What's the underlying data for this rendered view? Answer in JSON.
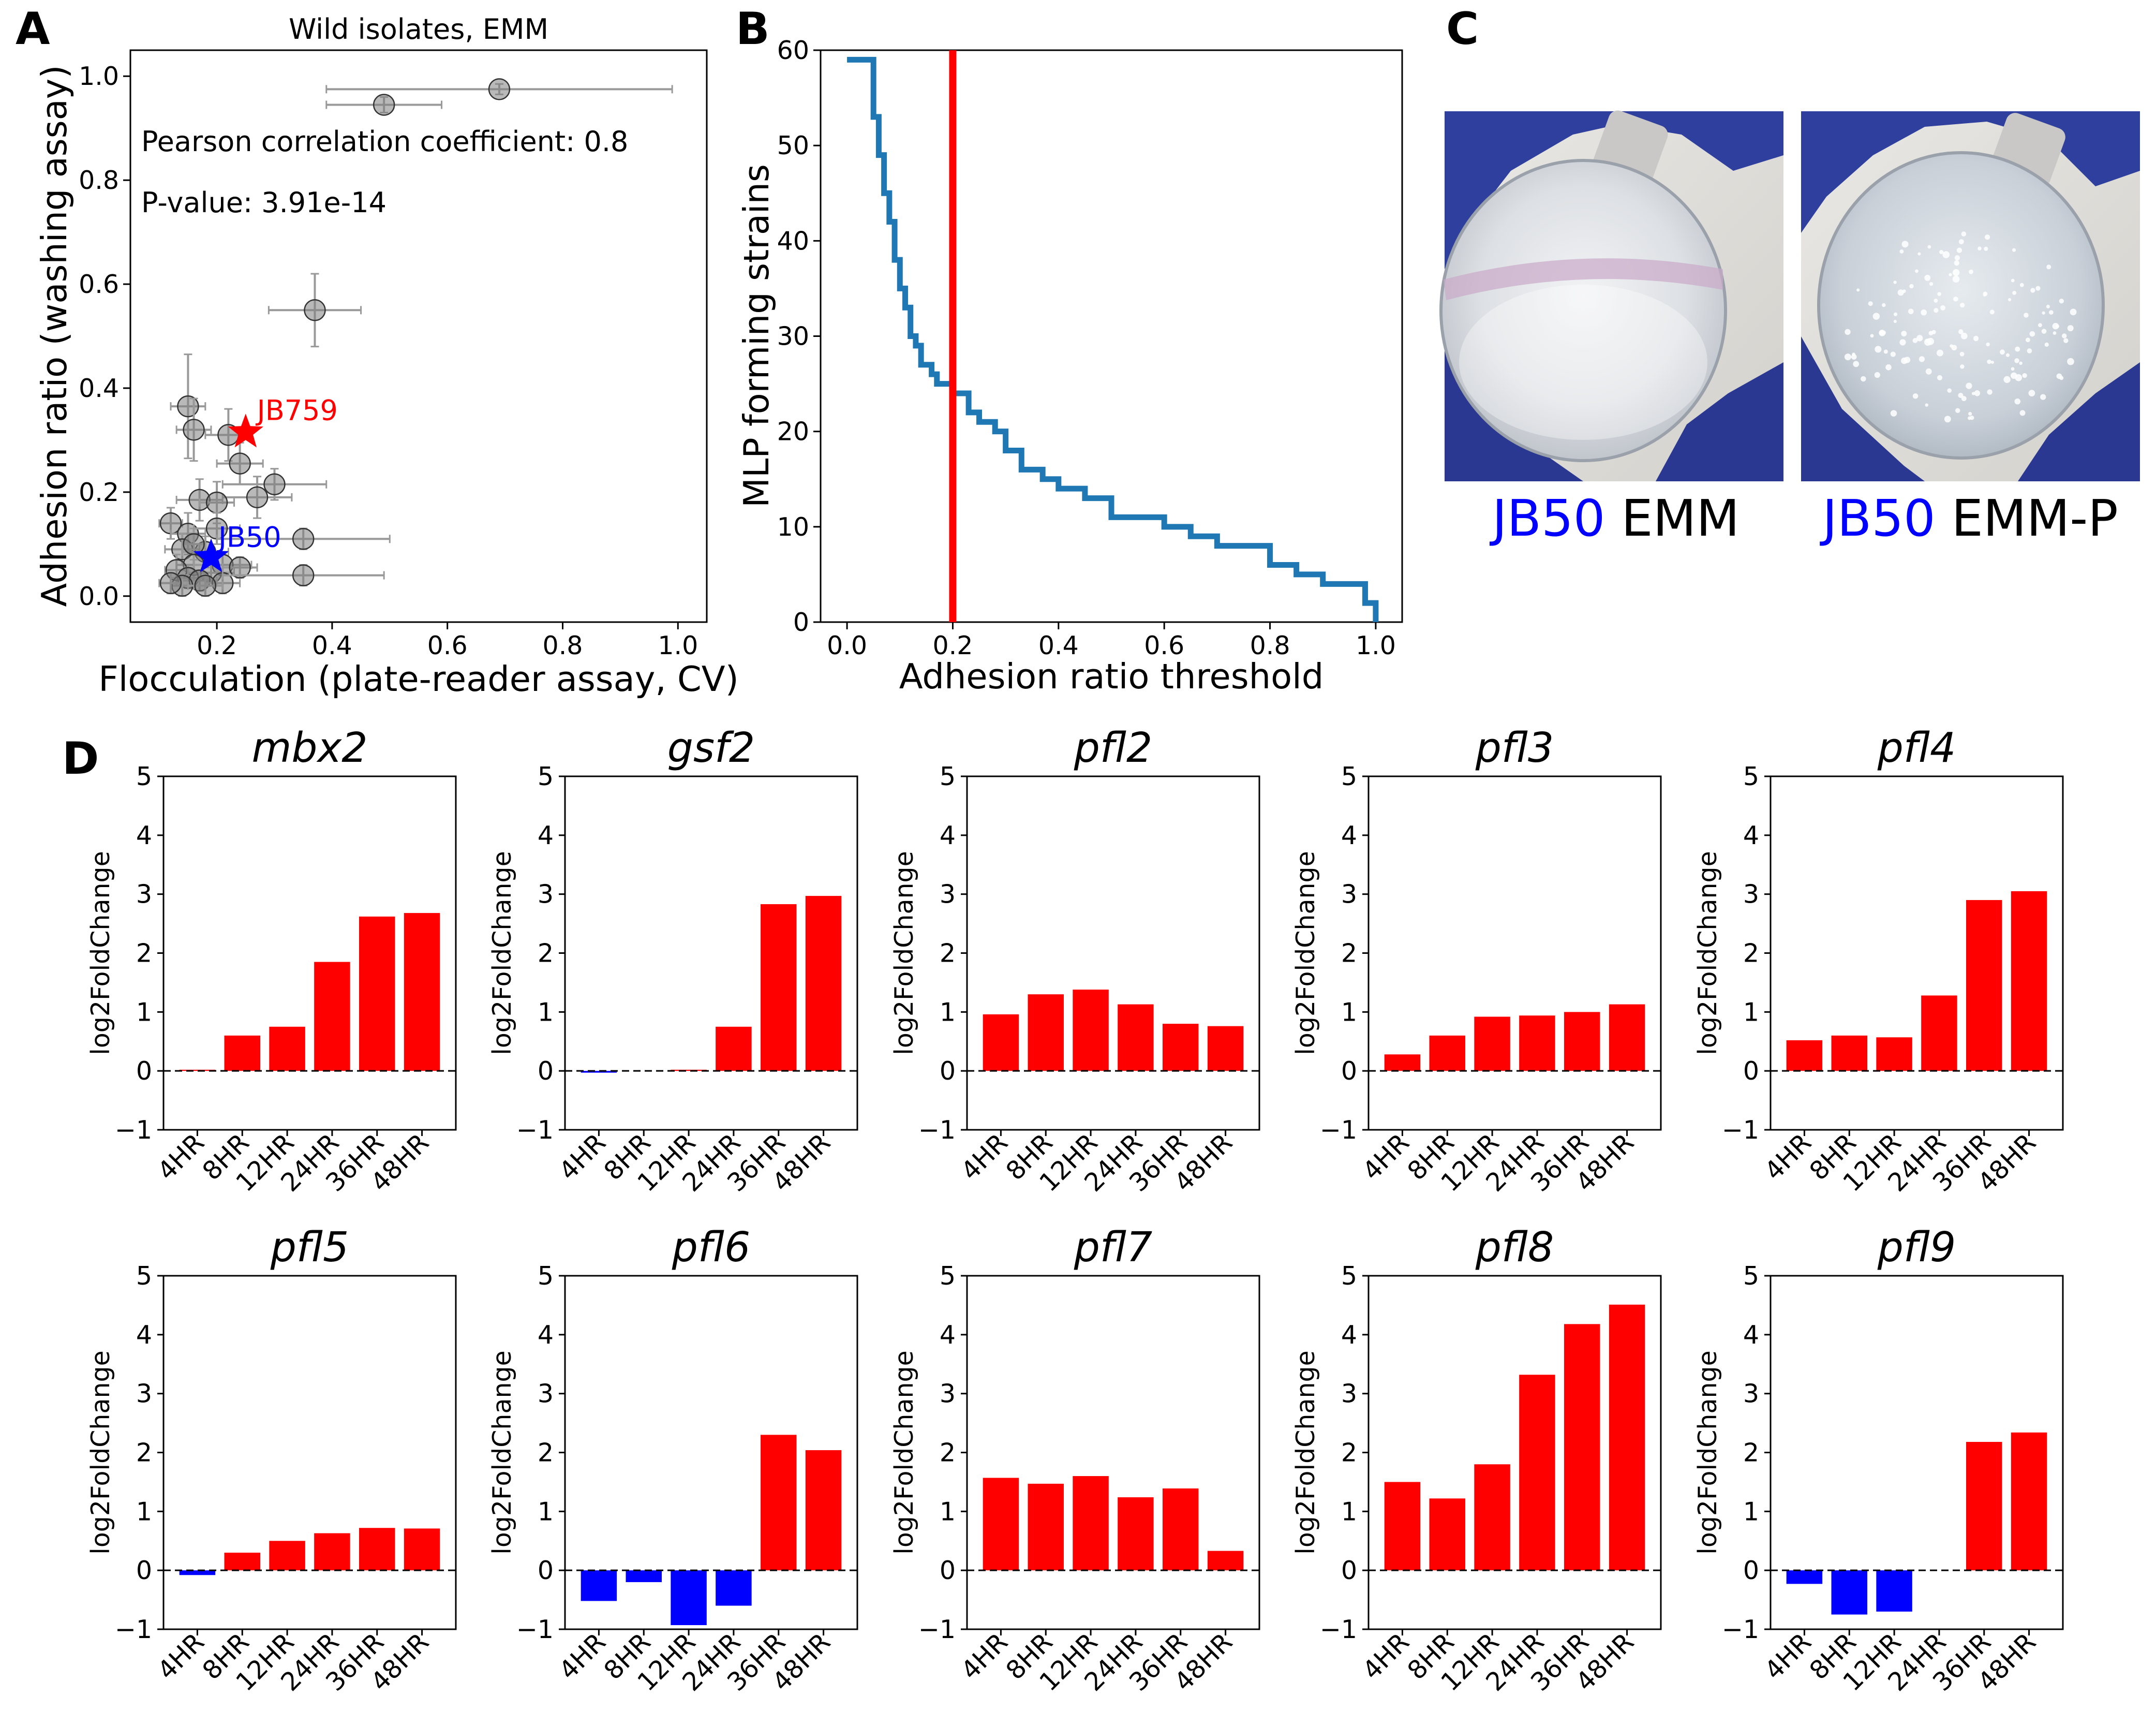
{
  "panels": {
    "a": "A",
    "b": "B",
    "c": "C",
    "d": "D"
  },
  "chart_data": [
    {
      "id": "A",
      "type": "scatter",
      "title": "Wild isolates, EMM",
      "xlabel": "Flocculation (plate-reader assay, CV)",
      "ylabel": "Adhesion ratio (washing assay)",
      "xlim": [
        0.05,
        1.05
      ],
      "ylim": [
        -0.05,
        1.05
      ],
      "xticks": [
        "0.2",
        "0.4",
        "0.6",
        "0.8",
        "1.0"
      ],
      "xtick_values": [
        0.2,
        0.4,
        0.6,
        0.8,
        1.0
      ],
      "yticks": [
        "0.0",
        "0.2",
        "0.4",
        "0.6",
        "0.8",
        "1.0"
      ],
      "ytick_values": [
        0.0,
        0.2,
        0.4,
        0.6,
        0.8,
        1.0
      ],
      "annotation_r": "Pearson correlation coefficient: 0.8",
      "annotation_p": "P-value: 3.91e-14",
      "point_color": "#808080",
      "errorbar_color": "#999999",
      "points": [
        {
          "x": 0.69,
          "y": 0.975,
          "xerr": 0.3,
          "yerr": 0.01
        },
        {
          "x": 0.49,
          "y": 0.945,
          "xerr": 0.1,
          "yerr": 0.015
        },
        {
          "x": 0.37,
          "y": 0.55,
          "xerr": 0.08,
          "yerr": 0.07
        },
        {
          "x": 0.15,
          "y": 0.365,
          "xerr": 0.03,
          "yerr": 0.1
        },
        {
          "x": 0.16,
          "y": 0.32,
          "xerr": 0.03,
          "yerr": 0.06
        },
        {
          "x": 0.22,
          "y": 0.31,
          "xerr": 0.04,
          "yerr": 0.05
        },
        {
          "x": 0.24,
          "y": 0.255,
          "xerr": 0.04,
          "yerr": 0.04
        },
        {
          "x": 0.3,
          "y": 0.215,
          "xerr": 0.09,
          "yerr": 0.03
        },
        {
          "x": 0.27,
          "y": 0.19,
          "xerr": 0.06,
          "yerr": 0.04
        },
        {
          "x": 0.17,
          "y": 0.185,
          "xerr": 0.04,
          "yerr": 0.04
        },
        {
          "x": 0.2,
          "y": 0.18,
          "xerr": 0.03,
          "yerr": 0.04
        },
        {
          "x": 0.12,
          "y": 0.14,
          "xerr": 0.02,
          "yerr": 0.03
        },
        {
          "x": 0.15,
          "y": 0.12,
          "xerr": 0.03,
          "yerr": 0.04
        },
        {
          "x": 0.2,
          "y": 0.13,
          "xerr": 0.04,
          "yerr": 0.03
        },
        {
          "x": 0.35,
          "y": 0.11,
          "xerr": 0.15,
          "yerr": 0.02
        },
        {
          "x": 0.14,
          "y": 0.09,
          "xerr": 0.03,
          "yerr": 0.03
        },
        {
          "x": 0.18,
          "y": 0.085,
          "xerr": 0.04,
          "yerr": 0.03
        },
        {
          "x": 0.16,
          "y": 0.06,
          "xerr": 0.03,
          "yerr": 0.03
        },
        {
          "x": 0.21,
          "y": 0.06,
          "xerr": 0.05,
          "yerr": 0.02
        },
        {
          "x": 0.13,
          "y": 0.05,
          "xerr": 0.02,
          "yerr": 0.03
        },
        {
          "x": 0.19,
          "y": 0.045,
          "xerr": 0.04,
          "yerr": 0.02
        },
        {
          "x": 0.24,
          "y": 0.055,
          "xerr": 0.03,
          "yerr": 0.02
        },
        {
          "x": 0.15,
          "y": 0.035,
          "xerr": 0.03,
          "yerr": 0.02
        },
        {
          "x": 0.17,
          "y": 0.03,
          "xerr": 0.03,
          "yerr": 0.02
        },
        {
          "x": 0.21,
          "y": 0.025,
          "xerr": 0.03,
          "yerr": 0.02
        },
        {
          "x": 0.14,
          "y": 0.02,
          "xerr": 0.02,
          "yerr": 0.02
        },
        {
          "x": 0.12,
          "y": 0.025,
          "xerr": 0.02,
          "yerr": 0.02
        },
        {
          "x": 0.18,
          "y": 0.02,
          "xerr": 0.03,
          "yerr": 0.02
        },
        {
          "x": 0.16,
          "y": 0.1,
          "xerr": 0.02,
          "yerr": 0.03
        },
        {
          "x": 0.35,
          "y": 0.04,
          "xerr": 0.14,
          "yerr": 0.02
        }
      ],
      "highlights": [
        {
          "label": "JB759",
          "x": 0.25,
          "y": 0.315,
          "color": "#ff0000"
        },
        {
          "label": "JB50",
          "x": 0.19,
          "y": 0.075,
          "color": "#0000ff"
        }
      ]
    },
    {
      "id": "B",
      "type": "line",
      "xlabel": "Adhesion ratio threshold",
      "ylabel": "MLP forming strains",
      "xlim": [
        -0.05,
        1.05
      ],
      "ylim": [
        0,
        60
      ],
      "xticks": [
        "0.0",
        "0.2",
        "0.4",
        "0.6",
        "0.8",
        "1.0"
      ],
      "xtick_values": [
        0.0,
        0.2,
        0.4,
        0.6,
        0.8,
        1.0
      ],
      "yticks": [
        "0",
        "10",
        "20",
        "30",
        "40",
        "50",
        "60"
      ],
      "ytick_values": [
        0,
        10,
        20,
        30,
        40,
        50,
        60
      ],
      "line_color": "#1f77b4",
      "threshold": 0.2,
      "threshold_color": "#ff0000",
      "x": [
        0.0,
        0.04,
        0.05,
        0.06,
        0.07,
        0.08,
        0.09,
        0.1,
        0.11,
        0.12,
        0.13,
        0.14,
        0.15,
        0.16,
        0.17,
        0.18,
        0.2,
        0.21,
        0.23,
        0.25,
        0.28,
        0.3,
        0.33,
        0.37,
        0.4,
        0.45,
        0.5,
        0.55,
        0.6,
        0.65,
        0.7,
        0.75,
        0.8,
        0.85,
        0.9,
        0.95,
        0.97,
        0.98,
        1.0
      ],
      "y": [
        59,
        59,
        53,
        49,
        45,
        42,
        38,
        35,
        33,
        30,
        29,
        27,
        27,
        26,
        25,
        25,
        24,
        24,
        22,
        21,
        20,
        18,
        16,
        15,
        14,
        13,
        11,
        11,
        10,
        9,
        8,
        8,
        6,
        5,
        4,
        4,
        4,
        2,
        0
      ]
    },
    {
      "id": "D",
      "type": "bar",
      "ylabel": "log2FoldChange",
      "ylim": [
        -1,
        5
      ],
      "yticks": [
        "−1",
        "0",
        "1",
        "2",
        "3",
        "4",
        "5"
      ],
      "ytick_values": [
        -1,
        0,
        1,
        2,
        3,
        4,
        5
      ],
      "categories": [
        "4HR",
        "8HR",
        "12HR",
        "24HR",
        "36HR",
        "48HR"
      ],
      "positive_color": "#ff0000",
      "negative_color": "#0000ff",
      "genes": [
        {
          "name": "mbx2",
          "values": [
            0.02,
            0.6,
            0.75,
            1.85,
            2.62,
            2.68
          ]
        },
        {
          "name": "gsf2",
          "values": [
            -0.03,
            0.0,
            0.02,
            0.75,
            2.83,
            2.97
          ]
        },
        {
          "name": "pfl2",
          "values": [
            0.96,
            1.3,
            1.38,
            1.13,
            0.8,
            0.76
          ]
        },
        {
          "name": "pfl3",
          "values": [
            0.28,
            0.6,
            0.92,
            0.94,
            1.0,
            1.13
          ]
        },
        {
          "name": "pfl4",
          "values": [
            0.52,
            0.6,
            0.57,
            1.28,
            2.9,
            3.05
          ]
        },
        {
          "name": "pfl5",
          "values": [
            -0.08,
            0.3,
            0.5,
            0.63,
            0.72,
            0.71
          ]
        },
        {
          "name": "pfl6",
          "values": [
            -0.52,
            -0.2,
            -0.93,
            -0.6,
            2.3,
            2.04
          ]
        },
        {
          "name": "pfl7",
          "values": [
            1.57,
            1.47,
            1.6,
            1.24,
            1.39,
            0.33
          ]
        },
        {
          "name": "pfl8",
          "values": [
            1.5,
            1.22,
            1.8,
            3.32,
            4.18,
            4.51
          ]
        },
        {
          "name": "pfl9",
          "values": [
            -0.23,
            -0.75,
            -0.7,
            0.0,
            2.18,
            2.34
          ]
        }
      ]
    }
  ],
  "photos": {
    "left": {
      "strain": "JB50",
      "medium": "EMM"
    },
    "right": {
      "strain": "JB50",
      "medium": "EMM-P"
    },
    "strain_color": "#0000ff",
    "glove_color": "#2f3f9e"
  }
}
